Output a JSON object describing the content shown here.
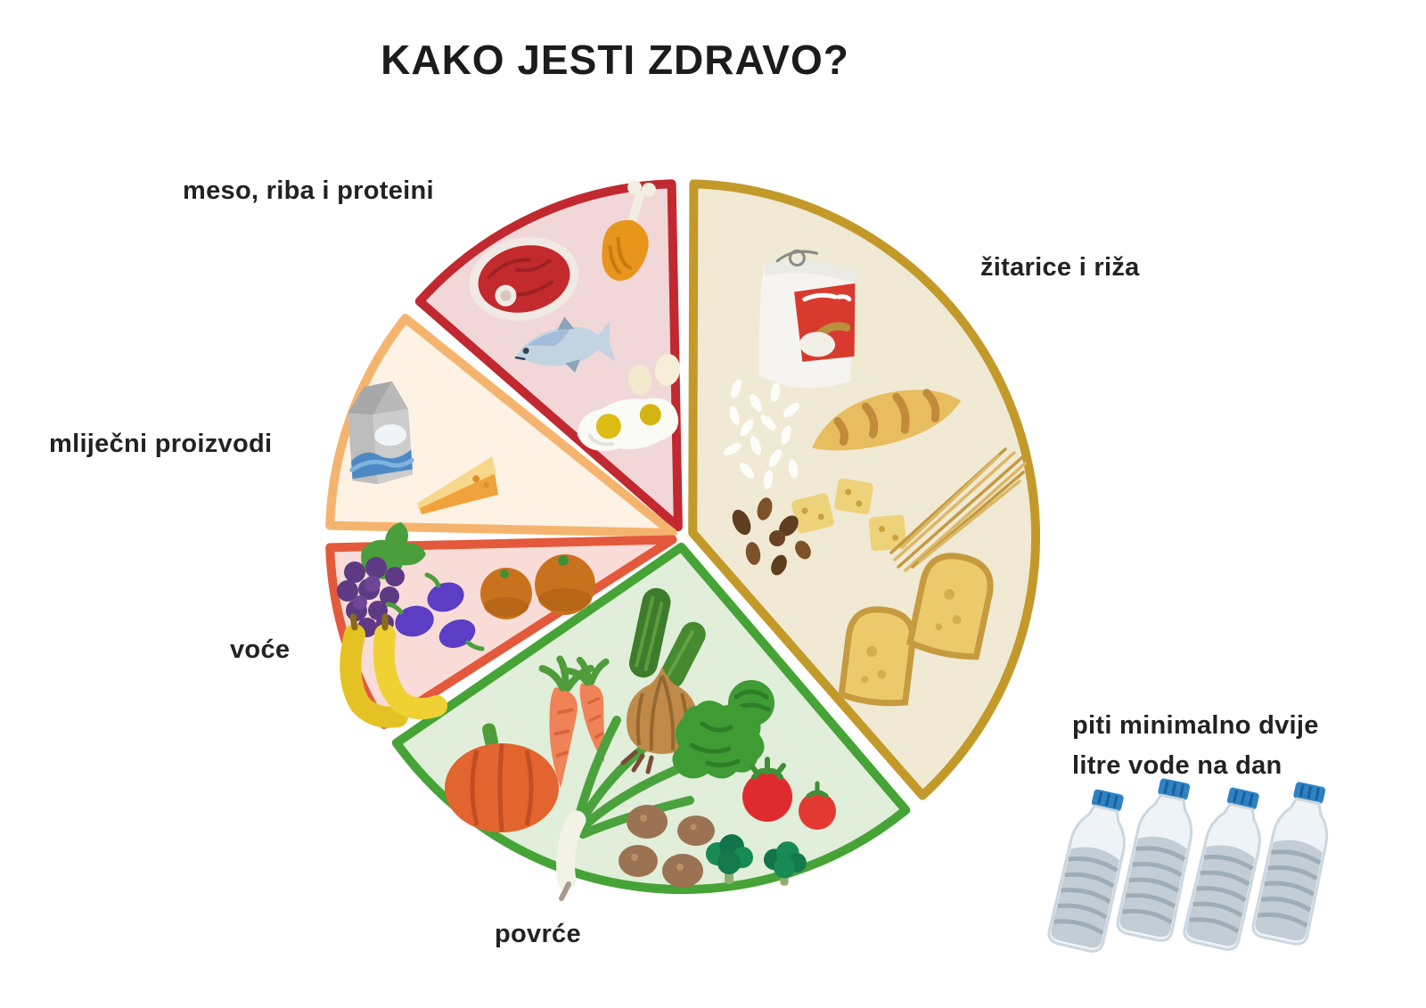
{
  "title": "KAKO JESTI ZDRAVO?",
  "chart_data": {
    "type": "pie",
    "title": "KAKO JESTI ZDRAVO?",
    "legend_position": "labels around chart",
    "slices": [
      {
        "id": "meso",
        "label": "meso, riba i proteini",
        "percent_approx": 13.9,
        "start_angle_deg": 90,
        "end_angle_deg": 140,
        "fill": "#f2d7d9",
        "border": "#c2282f",
        "items": [
          "steak",
          "chicken-drumstick",
          "fish",
          "eggs",
          "fried-egg"
        ]
      },
      {
        "id": "mlijecni",
        "label": "mliječni proizvodi",
        "percent_approx": 11.1,
        "start_angle_deg": 140,
        "end_angle_deg": 180,
        "fill": "#fdf2e4",
        "border": "#f5b46e",
        "items": [
          "milk-carton",
          "cheese-wedge"
        ]
      },
      {
        "id": "voce",
        "label": "voće",
        "percent_approx": 9.4,
        "start_angle_deg": 180,
        "end_angle_deg": 214,
        "fill": "#f9dcd7",
        "border": "#e4593b",
        "items": [
          "grapes",
          "plums",
          "oranges",
          "bananas"
        ]
      },
      {
        "id": "povrce",
        "label": "povrće",
        "percent_approx": 26.9,
        "start_angle_deg": 214,
        "end_angle_deg": 311,
        "fill": "#e1eed9",
        "border": "#46a336",
        "items": [
          "cucumbers",
          "carrots",
          "onion",
          "kale",
          "pumpkin",
          "leek",
          "potatoes",
          "tomatoes",
          "broccoli"
        ]
      },
      {
        "id": "zitarice",
        "label": "žitarice i riža",
        "percent_approx": 38.6,
        "start_angle_deg": 311,
        "end_angle_deg": 450,
        "fill": "#f0e9d4",
        "border": "#c39a2a",
        "items": [
          "flour-bag",
          "rice-grains",
          "baguette",
          "crackers",
          "seeds",
          "spaghetti",
          "bread-slices"
        ]
      }
    ],
    "annotation": {
      "line1": "piti minimalno dvije",
      "line2": "litre vode na dan",
      "icon": "water-bottles",
      "bottle_count": 4
    }
  },
  "colors": {
    "background": "#ffffff",
    "text": "#222222"
  }
}
